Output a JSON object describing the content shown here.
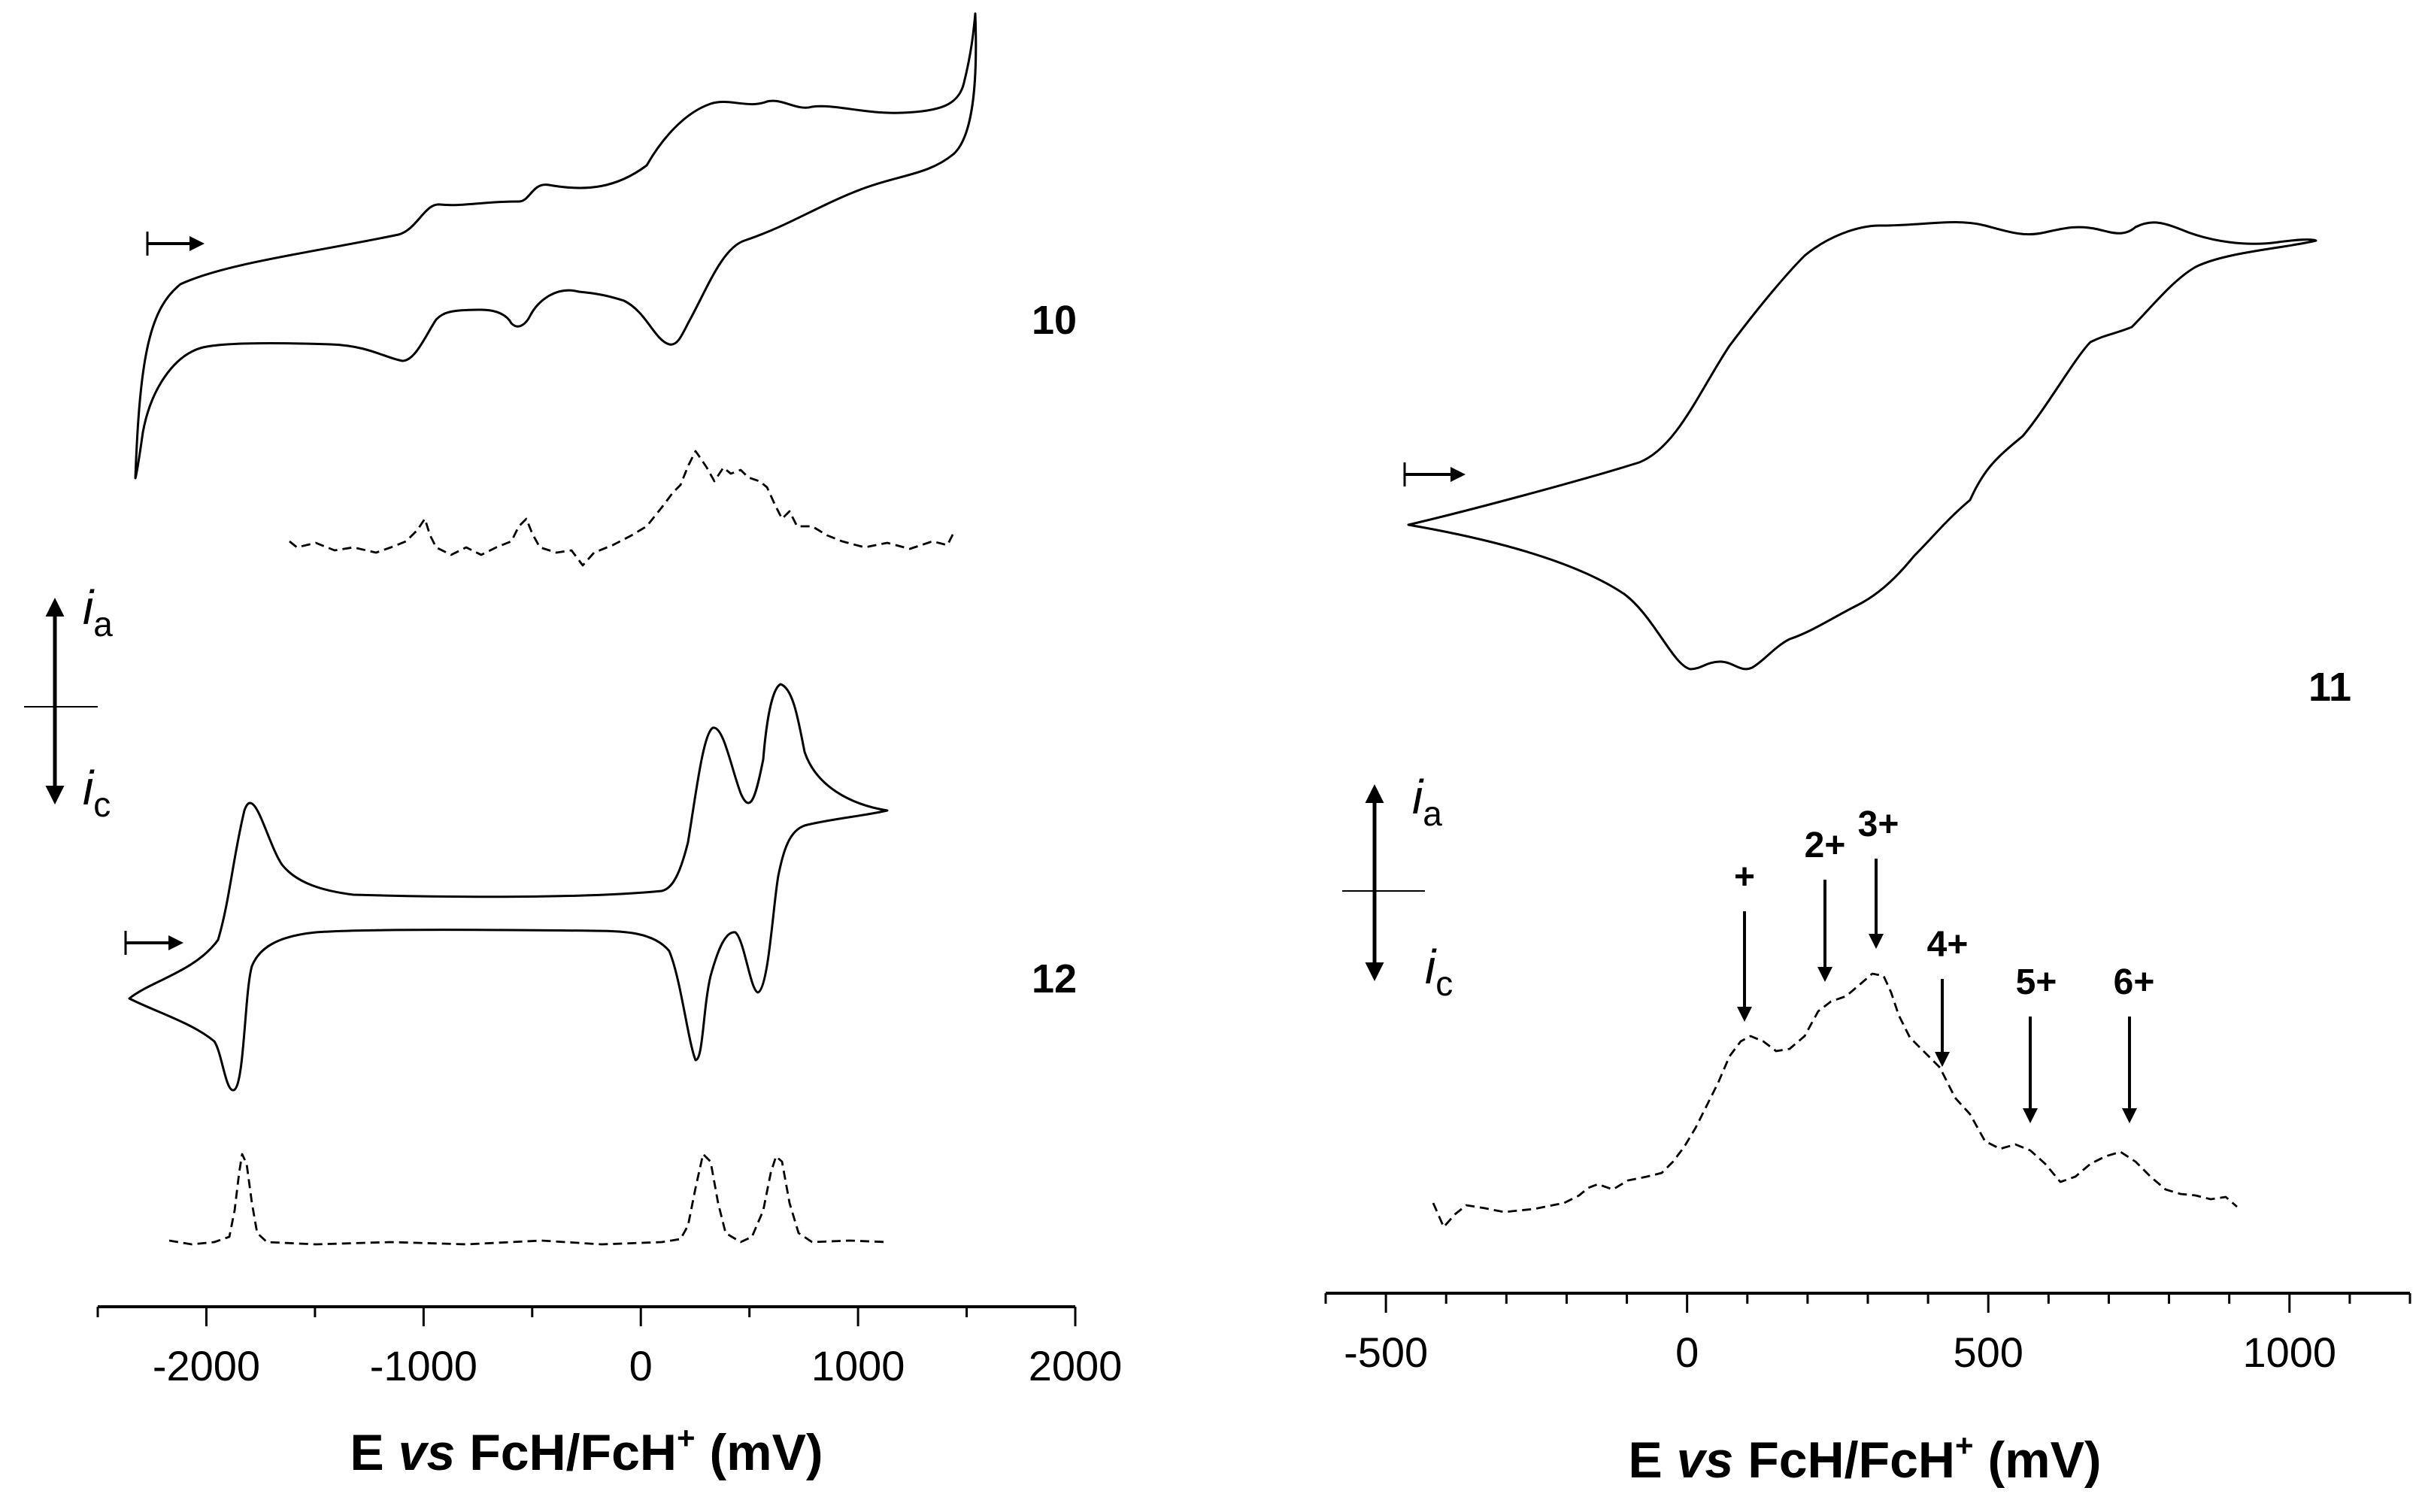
{
  "chart_data": [
    {
      "type": "line",
      "panel": "left",
      "title": "",
      "xlabel": "E vs FcH/FcH+ (mV)",
      "xlabel_parts": {
        "pre": "E ",
        "ital": "vs",
        "mid": " FcH/FcH",
        "sup": "+",
        "post": " (mV)"
      },
      "ylabel": "",
      "xlim": [
        -2500,
        2000
      ],
      "xticks": [
        -2000,
        -1000,
        0,
        1000,
        2000
      ],
      "xtick_labels": [
        "-2000",
        "-1000",
        "0",
        "1000",
        "2000"
      ],
      "grid": false,
      "current_axis": {
        "anodic": "i",
        "anodic_sub": "a",
        "cathodic": "i",
        "cathodic_sub": "c"
      },
      "series": [
        {
          "name": "10",
          "label": "10",
          "kind": "cyclic voltammogram",
          "scan_start_mV": -2300,
          "switching_potential_mV": 1580,
          "anodic_peaks_mV": [
            -980,
            -450,
            250,
            500
          ],
          "cathodic_peaks_mV": [
            -1050,
            -580,
            230
          ]
        },
        {
          "name": "10 (DPV)",
          "kind": "differential pulse voltammogram",
          "range_mV": [
            -1650,
            1450
          ],
          "peaks_mV": [
            -1000,
            -550,
            270,
            700
          ]
        },
        {
          "name": "12",
          "label": "12",
          "kind": "cyclic voltammogram",
          "scan_start_mV": -2380,
          "switching_potential_mV": 1150,
          "anodic_peaks_mV": [
            -1840,
            320,
            630
          ],
          "cathodic_peaks_mV": [
            -1880,
            270,
            590
          ]
        },
        {
          "name": "12 (DPV)",
          "kind": "differential pulse voltammogram",
          "range_mV": [
            -2200,
            1150
          ],
          "peaks_mV": [
            -1850,
            310,
            630
          ]
        }
      ]
    },
    {
      "type": "line",
      "panel": "right",
      "title": "",
      "xlabel": "E vs FcH/FcH+ (mV)",
      "xlabel_parts": {
        "pre": "E ",
        "ital": "vs",
        "mid": " FcH/FcH",
        "sup": "+",
        "post": " (mV)"
      },
      "ylabel": "",
      "xlim": [
        -600,
        1200
      ],
      "xticks": [
        -500,
        0,
        500,
        1000
      ],
      "xtick_labels": [
        "-500",
        "0",
        "500",
        "1000"
      ],
      "grid": false,
      "current_axis": {
        "anodic": "i",
        "anodic_sub": "a",
        "cathodic": "i",
        "cathodic_sub": "c"
      },
      "series": [
        {
          "name": "11",
          "label": "11",
          "kind": "cyclic voltammogram",
          "scan_start_mV": -460,
          "switching_potential_mV": 1050,
          "anodic_waves_mV": [
            120,
            300,
            560,
            780
          ],
          "cathodic_peaks_mV": [
            0,
            100
          ]
        },
        {
          "name": "11 (DPV)",
          "kind": "differential pulse voltammogram",
          "range_mV": [
            -420,
            940
          ],
          "peaks_mV": [
            100,
            220,
            310,
            420,
            560,
            730
          ]
        }
      ],
      "annotations": [
        {
          "text": "+",
          "x_mV": 100
        },
        {
          "text": "2+",
          "x_mV": 220
        },
        {
          "text": "3+",
          "x_mV": 320
        },
        {
          "text": "4+",
          "x_mV": 425
        },
        {
          "text": "5+",
          "x_mV": 570
        },
        {
          "text": "6+",
          "x_mV": 735
        }
      ]
    }
  ]
}
